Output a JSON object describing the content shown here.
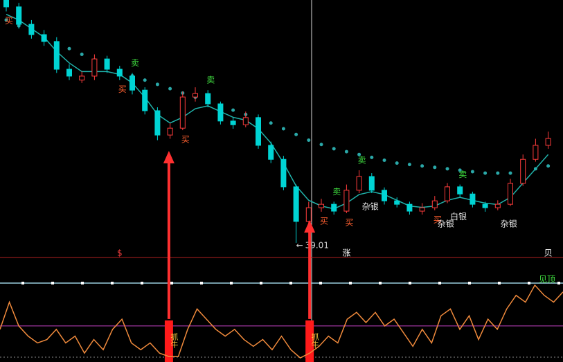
{
  "chart_data": [
    {
      "type": "candlestick",
      "ylim": [
        38.5,
        47.5
      ],
      "candles": {
        "open": [
          47.5,
          47.26,
          46.65,
          46.29,
          46.05,
          45.08,
          44.7,
          44.84,
          45.44,
          45.08,
          44.84,
          44.35,
          43.63,
          42.78,
          43.02,
          44.11,
          44.23,
          43.87,
          43.27,
          43.14,
          43.39,
          42.42,
          41.93,
          40.97,
          39.76,
          40.24,
          40.36,
          40.12,
          40.85,
          41.33,
          40.85,
          40.48,
          40.36,
          40.12,
          40.24,
          40.48,
          40.97,
          40.72,
          40.36,
          40.24,
          40.36,
          41.09,
          41.93,
          42.42
        ],
        "close": [
          47.26,
          46.65,
          46.29,
          46.05,
          45.08,
          44.84,
          44.84,
          45.44,
          45.08,
          44.84,
          44.35,
          43.63,
          42.78,
          43.02,
          44.11,
          44.23,
          43.87,
          43.27,
          43.14,
          43.39,
          42.42,
          41.93,
          40.97,
          39.76,
          40.24,
          40.36,
          40.12,
          40.85,
          41.33,
          40.85,
          40.48,
          40.36,
          40.12,
          40.24,
          40.48,
          40.97,
          40.72,
          40.36,
          40.24,
          40.36,
          41.09,
          41.93,
          42.42,
          42.66
        ],
        "high": [
          47.62,
          47.4,
          46.8,
          46.45,
          46.2,
          45.25,
          45.0,
          45.6,
          45.55,
          45.2,
          44.95,
          44.45,
          43.75,
          43.2,
          44.3,
          44.45,
          44.35,
          43.95,
          43.4,
          43.6,
          43.5,
          42.55,
          42.05,
          41.05,
          40.45,
          40.55,
          40.45,
          41.05,
          41.55,
          41.45,
          40.95,
          40.6,
          40.45,
          40.4,
          40.65,
          41.1,
          41.05,
          40.8,
          40.45,
          40.5,
          41.25,
          42.1,
          42.65,
          42.9
        ],
        "low": [
          47.1,
          46.5,
          46.15,
          45.9,
          44.95,
          44.7,
          44.6,
          44.7,
          44.95,
          44.7,
          44.2,
          43.5,
          42.6,
          42.65,
          42.95,
          43.95,
          43.75,
          43.15,
          43.0,
          43.05,
          42.3,
          41.8,
          40.85,
          39.01,
          39.6,
          40.1,
          40.0,
          40.05,
          40.75,
          40.75,
          40.35,
          40.25,
          40.0,
          40.0,
          40.15,
          40.4,
          40.6,
          40.25,
          40.1,
          40.15,
          40.3,
          41.0,
          41.85,
          42.3
        ]
      },
      "up_color": "#ff3c3c",
      "down_color": "#00d4d4",
      "series": [
        {
          "color": "#2aa8a8",
          "style": "dots",
          "values": [
            46.8,
            46.6,
            46.4,
            46.2,
            46.0,
            45.8,
            45.6,
            45.4,
            45.2,
            45.0,
            44.85,
            44.7,
            44.55,
            44.4,
            44.25,
            44.1,
            43.95,
            43.8,
            43.65,
            43.5,
            43.35,
            43.2,
            43.0,
            42.8,
            42.6,
            42.45,
            42.3,
            42.2,
            42.1,
            42.0,
            41.9,
            41.8,
            41.75,
            41.7,
            41.65,
            41.6,
            41.55,
            41.5,
            41.45,
            41.45,
            41.45,
            41.5,
            41.6,
            41.7
          ]
        },
        {
          "color": "#20b2aa",
          "style": "line",
          "values": [
            47.0,
            46.8,
            46.5,
            46.2,
            45.7,
            45.3,
            45.0,
            45.0,
            45.0,
            44.9,
            44.6,
            44.1,
            43.5,
            43.2,
            43.4,
            43.7,
            43.8,
            43.6,
            43.4,
            43.3,
            43.0,
            42.5,
            41.8,
            41.0,
            40.5,
            40.3,
            40.2,
            40.4,
            40.7,
            40.8,
            40.7,
            40.5,
            40.3,
            40.25,
            40.3,
            40.5,
            40.6,
            40.5,
            40.4,
            40.35,
            40.6,
            41.1,
            41.6,
            42.1
          ]
        }
      ],
      "annotations": [
        {
          "text": "买",
          "kind": "buy",
          "index": 0
        },
        {
          "text": "买",
          "kind": "buy",
          "index": 9
        },
        {
          "text": "卖",
          "kind": "sell",
          "index": 10
        },
        {
          "text": "买",
          "kind": "buy",
          "index": 14
        },
        {
          "text": "卖",
          "kind": "sell",
          "index": 16
        },
        {
          "text": "买",
          "kind": "buy",
          "index": 25
        },
        {
          "text": "卖",
          "kind": "sell",
          "index": 26
        },
        {
          "text": "买",
          "kind": "buy",
          "index": 27
        },
        {
          "text": "卖",
          "kind": "sell",
          "index": 28
        },
        {
          "text": "杂银",
          "kind": "pattern",
          "index": 28
        },
        {
          "text": "买",
          "kind": "buy",
          "index": 34
        },
        {
          "text": "杂银",
          "kind": "pattern",
          "index": 34
        },
        {
          "text": "白银",
          "kind": "pattern",
          "index": 35
        },
        {
          "text": "卖",
          "kind": "sell",
          "index": 36
        },
        {
          "text": "杂银",
          "kind": "pattern",
          "index": 39
        }
      ],
      "markers": [
        {
          "text": "$",
          "color": "#ff4040",
          "index": 9
        },
        {
          "text": "涨",
          "color": "#ffffff",
          "index": 27
        },
        {
          "text": "贝",
          "color": "#ffffff",
          "index": 43
        }
      ]
    },
    {
      "type": "line",
      "color": "#f08a3c",
      "ylim": [
        0,
        110
      ],
      "level": 50,
      "level_color": "#c040c0",
      "values": [
        45,
        85,
        50,
        35,
        25,
        30,
        45,
        25,
        35,
        10,
        30,
        15,
        45,
        60,
        25,
        15,
        25,
        10,
        5,
        5,
        45,
        75,
        60,
        45,
        35,
        45,
        30,
        20,
        30,
        15,
        35,
        15,
        3,
        10,
        20,
        35,
        25,
        60,
        70,
        55,
        70,
        50,
        60,
        40,
        20,
        45,
        25,
        65,
        75,
        45,
        65,
        30,
        60,
        45,
        75,
        95,
        85,
        110,
        95,
        85,
        100
      ],
      "signals": [
        {
          "text": "抓牛",
          "index": 18
        },
        {
          "text": "抓牛",
          "index": 33
        }
      ],
      "signal_color": "#ff1a1a",
      "top_label": "见顶"
    }
  ]
}
